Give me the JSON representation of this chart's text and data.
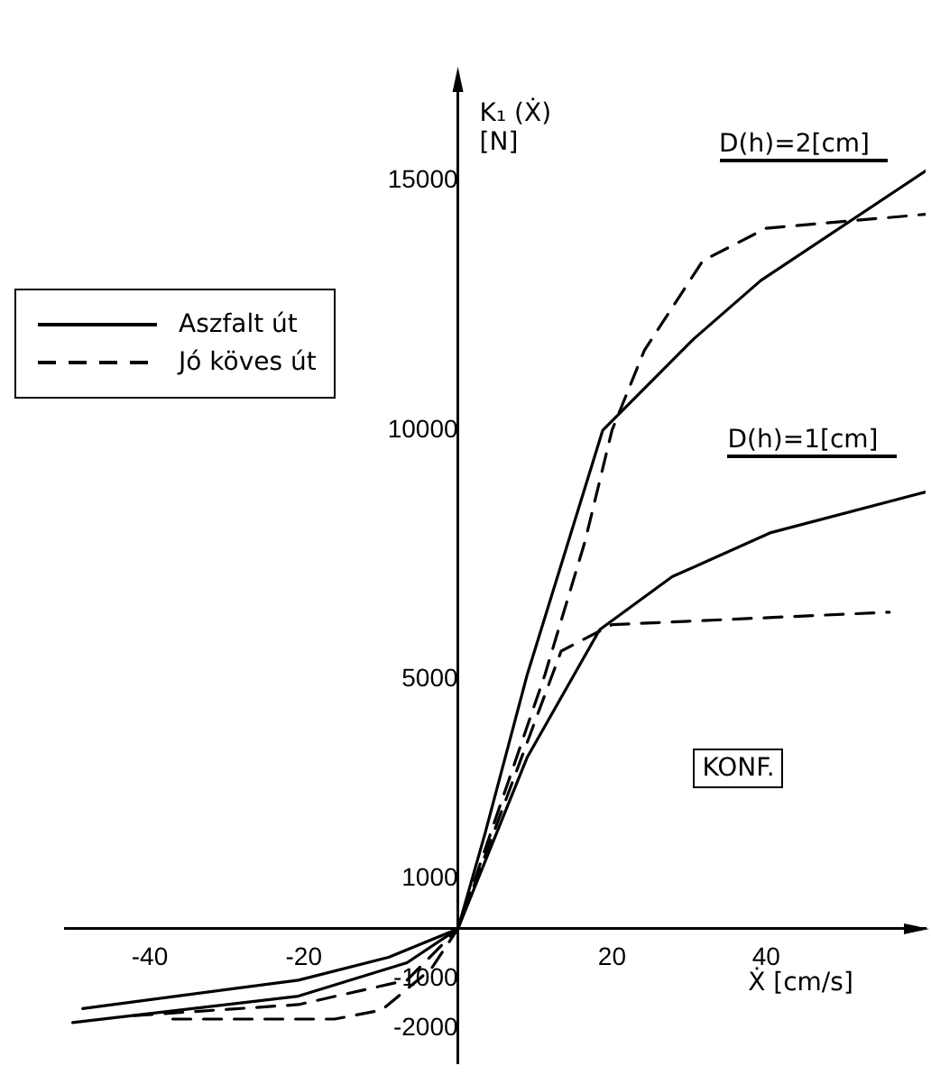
{
  "chart_data": {
    "type": "line",
    "ylabel": "K₁ (Ẋ) [N]",
    "xlabel": "Ẋ [cm/s]",
    "xlim": [
      -51,
      60.7
    ],
    "ylim": [
      -2700,
      17000
    ],
    "xticks": [
      -40,
      -20,
      20,
      40
    ],
    "yticks": [
      -2000,
      -1000,
      1000,
      5000,
      10000,
      15000
    ],
    "grid": false,
    "legend": "top left",
    "marker": "none",
    "annotations": [
      "D(h)=2[cm]",
      "D(h)=1[cm]",
      "KONF."
    ],
    "series": [
      {
        "name": "Aszfalt út",
        "color": "#000000",
        "line_style": "solid",
        "x": [
          -50,
          -20.7,
          -6.6,
          0,
          3.5,
          9,
          18.8,
          30.6,
          39.3,
          60.7
        ],
        "values": [
          -1880,
          -1350,
          -680,
          0,
          1900,
          5100,
          10000,
          11830,
          13000,
          15200
        ]
      },
      {
        "name": "Jó köves út",
        "color": "#000000",
        "line_style": "dashed",
        "x": [
          -42,
          -20.7,
          -6.6,
          0,
          11.3,
          16.5,
          20,
          24.2,
          31.8,
          40,
          60.7
        ],
        "values": [
          -1740,
          -1520,
          -1030,
          0,
          5100,
          7770,
          10000,
          11600,
          13400,
          14050,
          14330
        ]
      },
      {
        "color": "#000000",
        "line_style": "solid",
        "x": [
          -48.7,
          -20.7,
          -9,
          0,
          9,
          18.4,
          27.8,
          40.5,
          60.7
        ],
        "values": [
          -1600,
          -1030,
          -570,
          0,
          3440,
          6000,
          7060,
          7940,
          8760
        ]
      },
      {
        "color": "#000000",
        "line_style": "dashed",
        "x": [
          -37,
          -16,
          -9.9,
          -3.5,
          0,
          13.4,
          20,
          56
        ],
        "values": [
          -1810,
          -1810,
          -1630,
          -810,
          0,
          5570,
          6100,
          6350
        ]
      }
    ]
  }
}
